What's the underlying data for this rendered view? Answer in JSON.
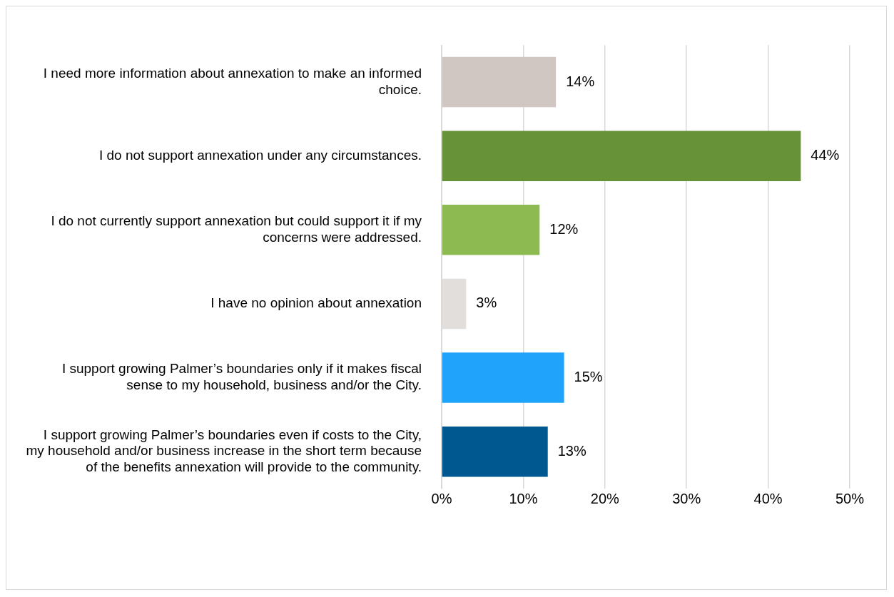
{
  "chart_data": {
    "type": "bar",
    "orientation": "horizontal",
    "categories": [
      "I need more information about annexation to make an informed choice.",
      "I do not support annexation under any circumstances.",
      "I do not currently support annexation but could support it if my concerns were addressed.",
      "I have no opinion about annexation",
      "I support growing Palmer’s boundaries only if it makes fiscal sense to my household, business and/or the City.",
      "I support growing Palmer’s boundaries even if costs to the City, my household and/or business increase in the short term because of the benefits annexation will provide to the community."
    ],
    "values": [
      14,
      44,
      12,
      3,
      15,
      13
    ],
    "value_labels": [
      "14%",
      "44%",
      "12%",
      "3%",
      "15%",
      "13%"
    ],
    "colors": [
      "#d0c7c2",
      "#679237",
      "#8dbb52",
      "#e2dedb",
      "#20a4fb",
      "#005891"
    ],
    "xlim": [
      0,
      50
    ],
    "xticks": [
      {
        "value": 0,
        "label": "0%"
      },
      {
        "value": 10,
        "label": "10%"
      },
      {
        "value": 20,
        "label": "20%"
      },
      {
        "value": 30,
        "label": "30%"
      },
      {
        "value": 40,
        "label": "40%"
      },
      {
        "value": 50,
        "label": "50%"
      }
    ],
    "grid": "x",
    "legend": false
  }
}
